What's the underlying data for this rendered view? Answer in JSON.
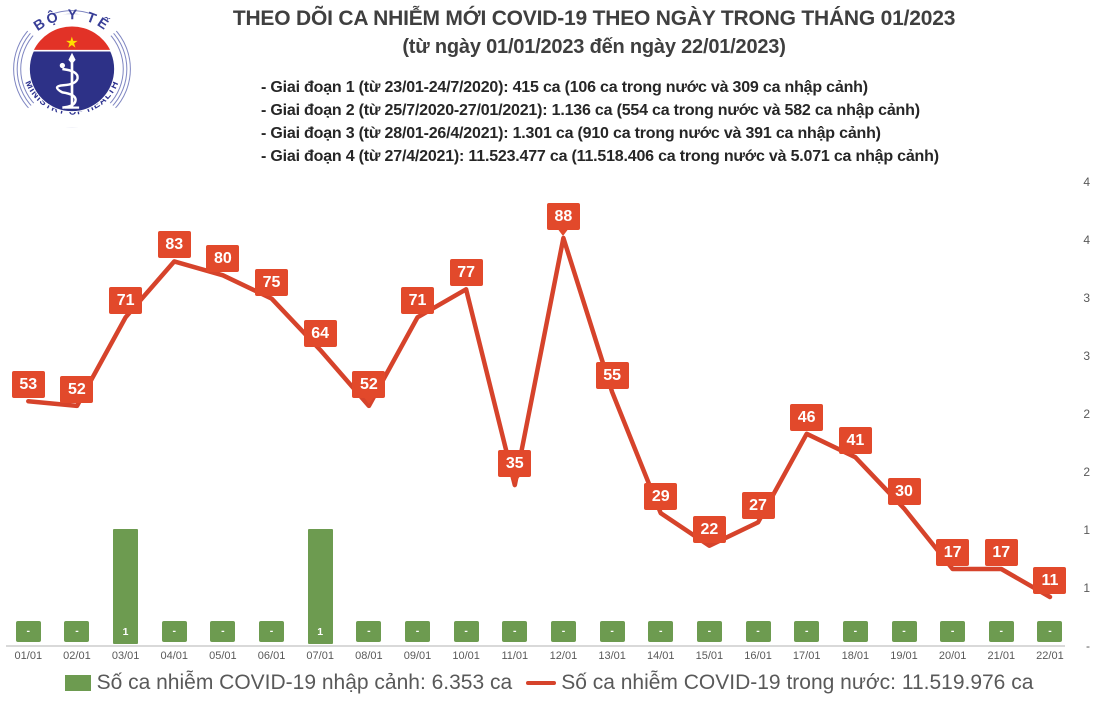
{
  "logo": {
    "top_text": "BỘ Y TẾ",
    "bottom_text": "MINISTRY OF HEALTH"
  },
  "header": {
    "title": "THEO DÕI CA NHIỄM MỚI COVID-19 THEO NGÀY TRONG THÁNG 01/2023",
    "subtitle": "(từ ngày 01/01/2023 đến ngày 22/01/2023)"
  },
  "phases": [
    "- Giai đoạn 1 (từ 23/01-24/7/2020): 415 ca (106 ca trong nước và 309 ca nhập cảnh)",
    "- Giai đoạn 2 (từ 25/7/2020-27/01/2021): 1.136 ca (554 ca trong nước và 582 ca nhập cảnh)",
    "- Giai đoạn 3 (từ 28/01-26/4/2021): 1.301 ca (910 ca trong nước và 391 ca nhập cảnh)",
    "- Giai đoạn 4 (từ 27/4/2021): 11.523.477 ca (11.518.406 ca trong nước và 5.071 ca nhập cảnh)"
  ],
  "chart_data": {
    "type": "combo",
    "categories": [
      "01/01",
      "02/01",
      "03/01",
      "04/01",
      "05/01",
      "06/01",
      "07/01",
      "08/01",
      "09/01",
      "10/01",
      "11/01",
      "12/01",
      "13/01",
      "14/01",
      "15/01",
      "16/01",
      "17/01",
      "18/01",
      "19/01",
      "20/01",
      "21/01",
      "22/01"
    ],
    "series": [
      {
        "name": "Số ca nhiễm COVID-19 nhập cảnh",
        "chart_type": "bar",
        "color": "#6D9B50",
        "values": [
          0,
          0,
          1,
          0,
          0,
          0,
          1,
          0,
          0,
          0,
          0,
          0,
          0,
          0,
          0,
          0,
          0,
          0,
          0,
          0,
          0,
          0
        ],
        "data_labels": [
          "-",
          "-",
          "1",
          "-",
          "-",
          "-",
          "1",
          "-",
          "-",
          "-",
          "-",
          "-",
          "-",
          "-",
          "-",
          "-",
          "-",
          "-",
          "-",
          "-",
          "-",
          "-"
        ]
      },
      {
        "name": "Số ca nhiễm COVID-19 trong nước",
        "chart_type": "line",
        "color": "#D6432B",
        "label_box_color": "#E2492B",
        "values": [
          53,
          52,
          71,
          83,
          80,
          75,
          64,
          52,
          71,
          77,
          35,
          88,
          55,
          29,
          22,
          27,
          46,
          41,
          30,
          17,
          17,
          11
        ]
      }
    ],
    "right_axis_tick_labels": [
      "4",
      "4",
      "3",
      "3",
      "2",
      "2",
      "1",
      "1",
      "-"
    ],
    "grid": "off",
    "legend_position": "bottom",
    "legend": [
      {
        "label": "Số ca nhiễm COVID-19 nhập cảnh: 6.353 ca",
        "color": "#6D9B50",
        "marker": "square"
      },
      {
        "label": "Số ca nhiễm COVID-19 trong nước: 11.519.976 ca",
        "color": "#D6432B",
        "marker": "line"
      }
    ]
  },
  "colors": {
    "bar_green": "#6D9B50",
    "line_red": "#D6432B",
    "label_box_red": "#E2492B",
    "axis_text_gray": "#595959",
    "title_gray": "#3f3f3f"
  }
}
